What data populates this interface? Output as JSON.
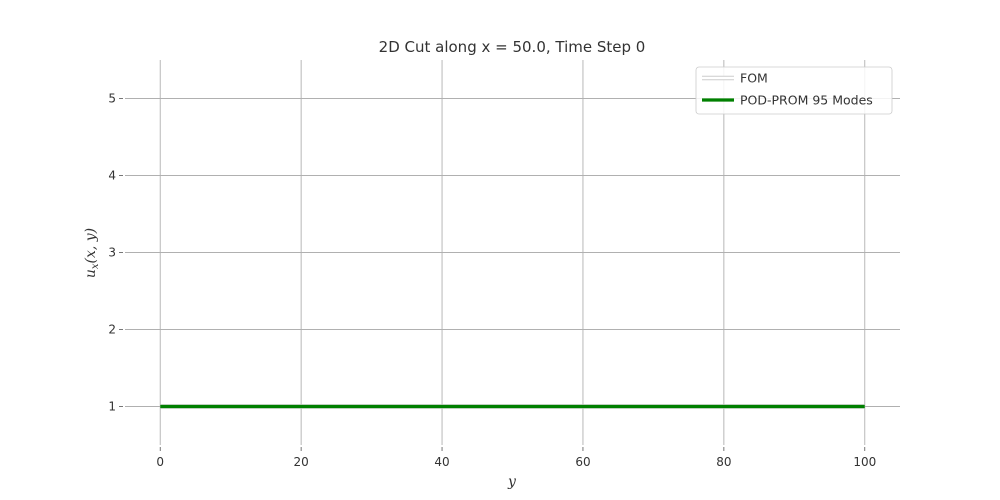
{
  "chart_data": {
    "type": "line",
    "title": "2D Cut along x = 50.0, Time Step 0",
    "xlabel": "y",
    "ylabel": "u_x(x, y)",
    "ylabel_main": "u",
    "ylabel_sub": "x",
    "ylabel_args": "(x, y)",
    "xlim": [
      -5,
      105
    ],
    "ylim": [
      0.5,
      5.5
    ],
    "xticks": [
      0,
      20,
      40,
      60,
      80,
      100
    ],
    "yticks": [
      1,
      2,
      3,
      4,
      5
    ],
    "grid": true,
    "legend_position": "top-right",
    "series": [
      {
        "name": "FOM",
        "x": [
          0,
          100
        ],
        "y": [
          1,
          1
        ],
        "color": "#cccccc",
        "style": "hollow"
      },
      {
        "name": "POD-PROM 95 Modes",
        "x": [
          0,
          100
        ],
        "y": [
          1,
          1
        ],
        "color": "#008000",
        "style": "solid"
      }
    ]
  }
}
